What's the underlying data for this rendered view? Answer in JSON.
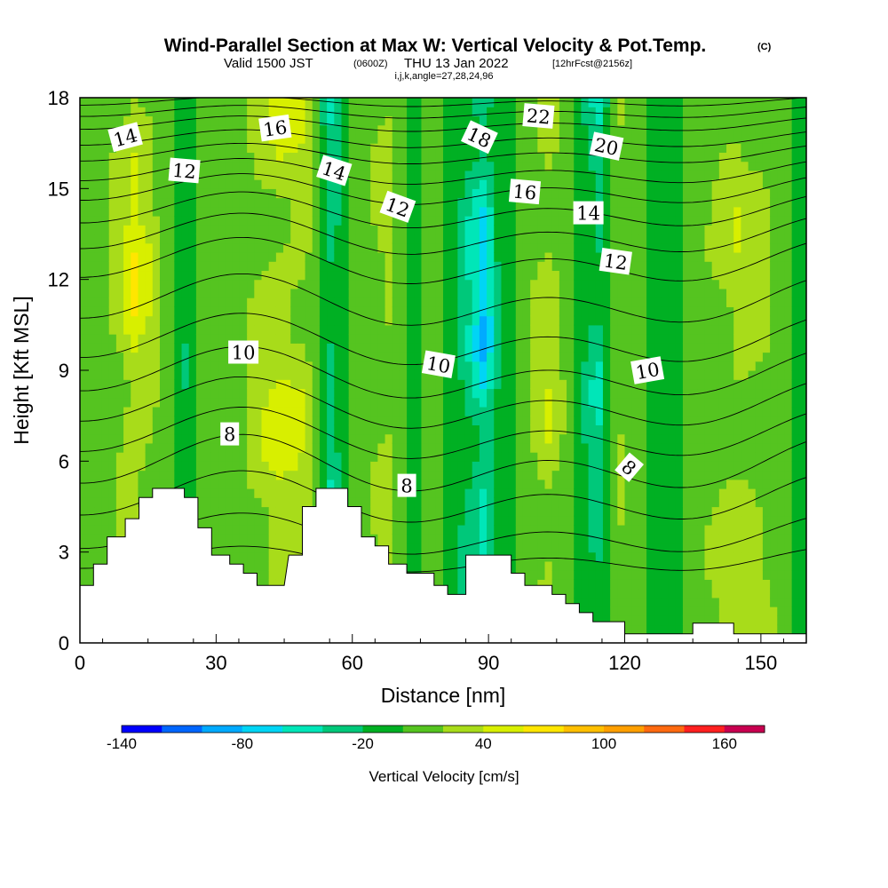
{
  "header": {
    "title": "Wind-Parallel Section at Max W: Vertical Velocity & Pot.Temp.",
    "copyright": "(C)",
    "valid_prefix": "Valid 1500 JST",
    "valid_utc": "(0600Z)",
    "valid_date": "THU 13 Jan 2022",
    "forecast": "[12hrFcst@2156z]",
    "indices": "i,j,k,angle=27,28,24,96"
  },
  "chart_data": {
    "type": "heatmap",
    "xlabel": "Distance [nm]",
    "ylabel": "Height [Kft MSL]",
    "xlim": [
      0,
      160
    ],
    "ylim": [
      0,
      18
    ],
    "x_ticks": [
      0,
      30,
      60,
      90,
      120,
      150
    ],
    "y_ticks": [
      0,
      3,
      6,
      9,
      12,
      15,
      18
    ],
    "colorbar": {
      "label": "Vertical Velocity [cm/s]",
      "tick_labels": [
        "-140",
        "-80",
        "-20",
        "40",
        "100",
        "160"
      ],
      "tick_values": [
        -140,
        -80,
        -20,
        40,
        100,
        160
      ],
      "range": [
        -140,
        180
      ],
      "levels": 16,
      "colors": [
        "#0000ff",
        "#0066ff",
        "#00aaff",
        "#00d5f5",
        "#00e6b8",
        "#00c87a",
        "#00b023",
        "#55c420",
        "#a8dc1a",
        "#d8ef00",
        "#ffe600",
        "#ffbf00",
        "#ff9f00",
        "#ff6a10",
        "#ff2020",
        "#c80050"
      ]
    },
    "velocity_columns": [
      {
        "x": 2,
        "v": 0
      },
      {
        "x": 8,
        "v": 28
      },
      {
        "x": 12,
        "v": 58
      },
      {
        "x": 18,
        "v": 20
      },
      {
        "x": 23,
        "v": -20
      },
      {
        "x": 28,
        "v": 12
      },
      {
        "x": 33,
        "v": 0
      },
      {
        "x": 38,
        "v": 28
      },
      {
        "x": 44,
        "v": 45
      },
      {
        "x": 50,
        "v": 38
      },
      {
        "x": 55,
        "v": -40
      },
      {
        "x": 58,
        "v": -10
      },
      {
        "x": 63,
        "v": 15
      },
      {
        "x": 68,
        "v": 30
      },
      {
        "x": 73,
        "v": -10
      },
      {
        "x": 78,
        "v": 8
      },
      {
        "x": 84,
        "v": -25
      },
      {
        "x": 89,
        "v": -75
      },
      {
        "x": 93,
        "v": -10
      },
      {
        "x": 98,
        "v": 12
      },
      {
        "x": 103,
        "v": 40
      },
      {
        "x": 108,
        "v": 8
      },
      {
        "x": 114,
        "v": -45
      },
      {
        "x": 119,
        "v": 22
      },
      {
        "x": 124,
        "v": 0
      },
      {
        "x": 130,
        "v": -8
      },
      {
        "x": 135,
        "v": 10
      },
      {
        "x": 140,
        "v": 22
      },
      {
        "x": 145,
        "v": 35
      },
      {
        "x": 152,
        "v": 20
      },
      {
        "x": 158,
        "v": -5
      }
    ],
    "terrain": [
      [
        0,
        1.9
      ],
      [
        3,
        1.9
      ],
      [
        3,
        2.6
      ],
      [
        6,
        2.6
      ],
      [
        6,
        3.5
      ],
      [
        10,
        3.5
      ],
      [
        10,
        4.1
      ],
      [
        13,
        4.1
      ],
      [
        13,
        4.8
      ],
      [
        16,
        4.8
      ],
      [
        16,
        5.1
      ],
      [
        23,
        5.1
      ],
      [
        23,
        4.8
      ],
      [
        26,
        4.8
      ],
      [
        26,
        3.8
      ],
      [
        29,
        3.8
      ],
      [
        29,
        2.9
      ],
      [
        33,
        2.9
      ],
      [
        33,
        2.6
      ],
      [
        36,
        2.6
      ],
      [
        36,
        2.3
      ],
      [
        39,
        2.3
      ],
      [
        39,
        1.9
      ],
      [
        45,
        1.9
      ],
      [
        46,
        2.9
      ],
      [
        49,
        2.9
      ],
      [
        49,
        4.5
      ],
      [
        52,
        4.5
      ],
      [
        52,
        5.1
      ],
      [
        59,
        5.1
      ],
      [
        59,
        4.5
      ],
      [
        62,
        4.5
      ],
      [
        62,
        3.5
      ],
      [
        65,
        3.5
      ],
      [
        65,
        3.2
      ],
      [
        68,
        3.2
      ],
      [
        68,
        2.6
      ],
      [
        72,
        2.6
      ],
      [
        72,
        2.3
      ],
      [
        78,
        2.3
      ],
      [
        78,
        1.9
      ],
      [
        81,
        1.9
      ],
      [
        81,
        1.6
      ],
      [
        85,
        1.6
      ],
      [
        85,
        2.9
      ],
      [
        95,
        2.9
      ],
      [
        95,
        2.3
      ],
      [
        98,
        2.3
      ],
      [
        98,
        1.9
      ],
      [
        104,
        1.9
      ],
      [
        104,
        1.6
      ],
      [
        107,
        1.6
      ],
      [
        107,
        1.3
      ],
      [
        110,
        1.3
      ],
      [
        110,
        1.0
      ],
      [
        113,
        1.0
      ],
      [
        113,
        0.7
      ],
      [
        120,
        0.7
      ],
      [
        120,
        0.3
      ],
      [
        135,
        0.3
      ],
      [
        135,
        0.65
      ],
      [
        144,
        0.65
      ],
      [
        144,
        0.3
      ],
      [
        160,
        0.3
      ],
      [
        160,
        0
      ],
      [
        0,
        0
      ]
    ],
    "theta_contours": [
      {
        "base": 2.7,
        "amp": 0.5
      },
      {
        "base": 3.5,
        "amp": 0.8
      },
      {
        "base": 4.7,
        "amp": 1.0
      },
      {
        "base": 5.8,
        "amp": 1.1
      },
      {
        "base": 6.8,
        "amp": 1.0
      },
      {
        "base": 7.8,
        "amp": 1.0
      },
      {
        "base": 8.8,
        "amp": 1.0
      },
      {
        "base": 9.9,
        "amp": 1.0
      },
      {
        "base": 11.2,
        "amp": 1.0
      },
      {
        "base": 12.5,
        "amp": 0.9
      },
      {
        "base": 13.4,
        "amp": 0.8
      },
      {
        "base": 14.2,
        "amp": 0.7
      },
      {
        "base": 14.9,
        "amp": 0.6
      },
      {
        "base": 15.5,
        "amp": 0.5
      },
      {
        "base": 16.1,
        "amp": 0.4
      },
      {
        "base": 16.6,
        "amp": 0.35
      },
      {
        "base": 17.1,
        "amp": 0.3
      },
      {
        "base": 17.5,
        "amp": 0.25
      },
      {
        "base": 17.85,
        "amp": 0.2
      }
    ],
    "contour_labels": [
      {
        "text": "14",
        "x": 10,
        "y": 16.7,
        "angle": -15
      },
      {
        "text": "16",
        "x": 43,
        "y": 17.0,
        "angle": -8
      },
      {
        "text": "12",
        "x": 23,
        "y": 15.6,
        "angle": 5
      },
      {
        "text": "14",
        "x": 56,
        "y": 15.6,
        "angle": 18
      },
      {
        "text": "12",
        "x": 70,
        "y": 14.4,
        "angle": 20
      },
      {
        "text": "18",
        "x": 88,
        "y": 16.7,
        "angle": 25
      },
      {
        "text": "22",
        "x": 101,
        "y": 17.4,
        "angle": 5
      },
      {
        "text": "16",
        "x": 98,
        "y": 14.9,
        "angle": 5
      },
      {
        "text": "20",
        "x": 116,
        "y": 16.4,
        "angle": 12
      },
      {
        "text": "14",
        "x": 112,
        "y": 14.2,
        "angle": 0
      },
      {
        "text": "12",
        "x": 118,
        "y": 12.6,
        "angle": 8
      },
      {
        "text": "10",
        "x": 36,
        "y": 9.6,
        "angle": 0
      },
      {
        "text": "10",
        "x": 79,
        "y": 9.2,
        "angle": 10
      },
      {
        "text": "10",
        "x": 125,
        "y": 9.0,
        "angle": -10
      },
      {
        "text": "8",
        "x": 33,
        "y": 6.9,
        "angle": 0
      },
      {
        "text": "8",
        "x": 72,
        "y": 5.2,
        "angle": 0
      },
      {
        "text": "8",
        "x": 121,
        "y": 5.8,
        "angle": 40
      }
    ]
  }
}
